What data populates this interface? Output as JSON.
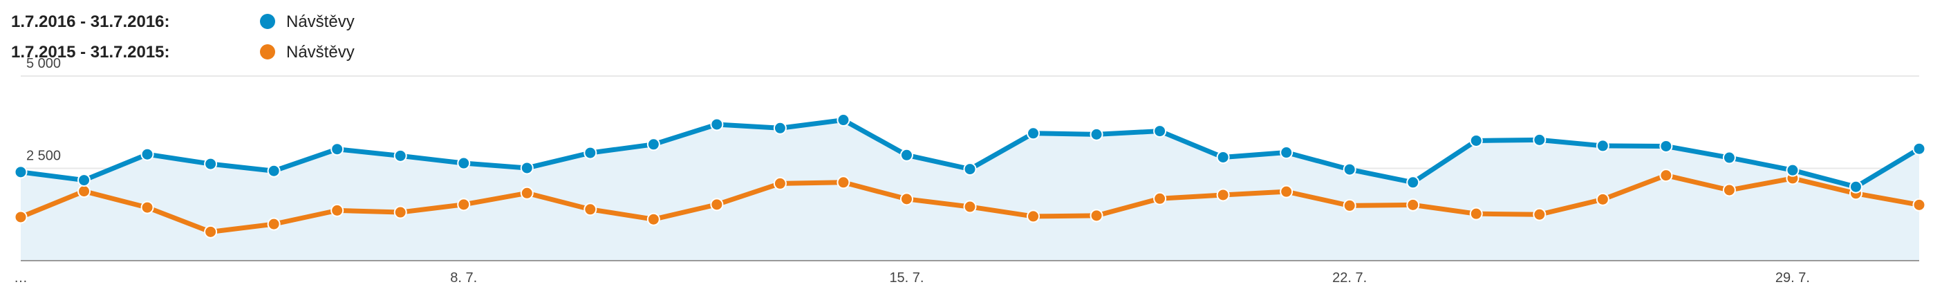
{
  "legend": {
    "current_range": "1.7.2016 - 31.7.2016:",
    "current_label": "Návštěvy",
    "previous_range": "1.7.2015 - 31.7.2015:",
    "previous_label": "Návštěvy"
  },
  "colors": {
    "current": "#058dc7",
    "previous": "#ed7e17",
    "area_fill": "#e6f2f9",
    "gridline": "#e8e8e8",
    "baseline": "#999999"
  },
  "chart_data": {
    "type": "line",
    "x": [
      1,
      2,
      3,
      4,
      5,
      6,
      7,
      8,
      9,
      10,
      11,
      12,
      13,
      14,
      15,
      16,
      17,
      18,
      19,
      20,
      21,
      22,
      23,
      24,
      25,
      26,
      27,
      28,
      29,
      30,
      31
    ],
    "series": [
      {
        "name": "Návštěvy",
        "range": "1.7.2016 - 31.7.2016",
        "color": "#058dc7",
        "fill": true,
        "values": [
          2400,
          2180,
          2880,
          2620,
          2430,
          3020,
          2840,
          2640,
          2510,
          2920,
          3150,
          3690,
          3590,
          3810,
          2860,
          2480,
          3450,
          3420,
          3510,
          2800,
          2930,
          2470,
          2120,
          3250,
          3270,
          3110,
          3100,
          2790,
          2450,
          2000,
          3030
        ]
      },
      {
        "name": "Návštěvy",
        "range": "1.7.2015 - 31.7.2015",
        "color": "#ed7e17",
        "fill": false,
        "values": [
          1180,
          1880,
          1440,
          780,
          990,
          1360,
          1310,
          1520,
          1830,
          1390,
          1120,
          1520,
          2090,
          2120,
          1670,
          1460,
          1200,
          1220,
          1680,
          1780,
          1870,
          1490,
          1510,
          1270,
          1250,
          1660,
          2310,
          1910,
          2230,
          1820,
          1510
        ]
      }
    ],
    "ylim": [
      0,
      5000
    ],
    "y_ticks": [
      2500,
      5000
    ],
    "y_tick_labels": [
      "2 500",
      "5 000"
    ],
    "x_tick_labels": [
      {
        "x": 1,
        "label": "…"
      },
      {
        "x": 8,
        "label": "8. 7."
      },
      {
        "x": 15,
        "label": "15. 7."
      },
      {
        "x": 22,
        "label": "22. 7."
      },
      {
        "x": 29,
        "label": "29. 7."
      }
    ],
    "grid": true
  }
}
